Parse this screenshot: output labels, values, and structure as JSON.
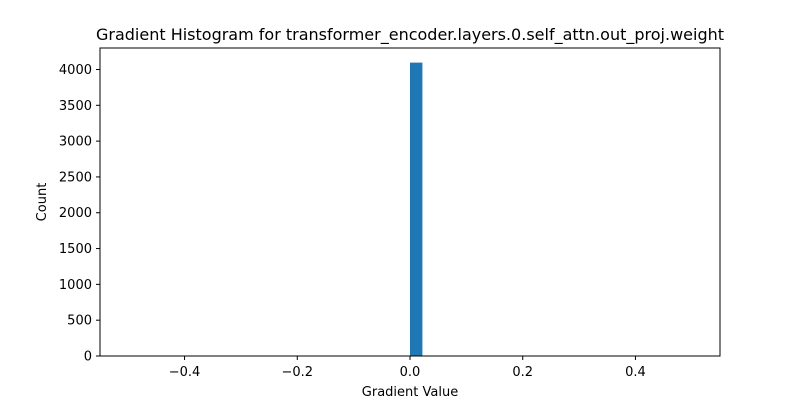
{
  "chart_data": {
    "type": "bar",
    "title": "Gradient Histogram for transformer_encoder.layers.0.self_attn.out_proj.weight",
    "xlabel": "Gradient Value",
    "ylabel": "Count",
    "xlim": [
      -0.55,
      0.55
    ],
    "ylim": [
      0,
      4300
    ],
    "xticks": [
      -0.4,
      -0.2,
      0.0,
      0.2,
      0.4
    ],
    "xtick_labels": [
      "−0.4",
      "−0.2",
      "0.0",
      "0.2",
      "0.4"
    ],
    "yticks": [
      0,
      500,
      1000,
      1500,
      2000,
      2500,
      3000,
      3500,
      4000
    ],
    "ytick_labels": [
      "0",
      "500",
      "1000",
      "1500",
      "2000",
      "2500",
      "3000",
      "3500",
      "4000"
    ],
    "bar_color": "#1f77b4",
    "grid": false,
    "bins": [
      {
        "x0": 0.0,
        "x1": 0.022,
        "count": 4096
      }
    ]
  }
}
